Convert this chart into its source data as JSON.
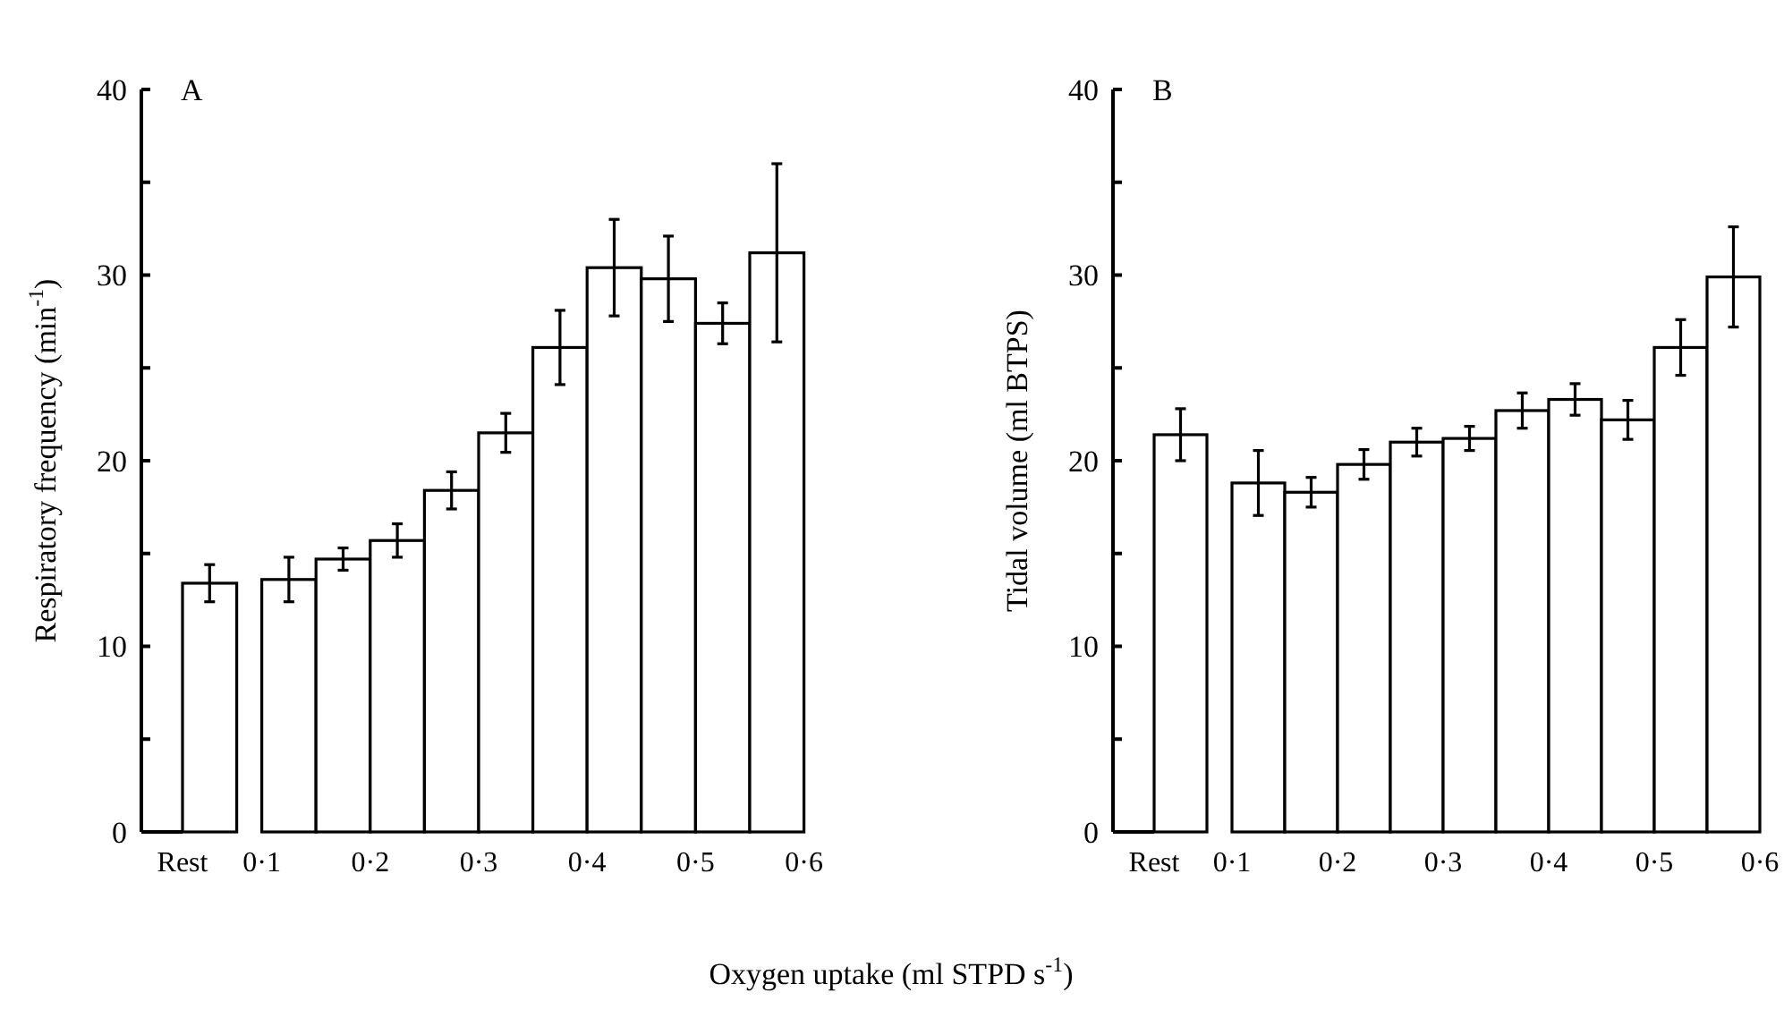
{
  "chart_data": [
    {
      "type": "bar",
      "title": "A",
      "ylabel": "Respiratory frequency (min$^{-1}$)",
      "xlabel": "Oxygen uptake (ml STPD s$^{-1}$)",
      "color": "#ffffff",
      "categories": [
        "Rest",
        "0·1",
        null,
        "0·2",
        null,
        "0·3",
        null,
        "0·4",
        null,
        "0·5",
        null,
        "0·6"
      ],
      "values": [
        13.4,
        13.6,
        14.7,
        15.7,
        18.4,
        21.5,
        26.1,
        30.4,
        29.8,
        27.4,
        31.2,
        null
      ],
      "errors": [
        1.0,
        1.2,
        0.6,
        0.9,
        1.0,
        1.05,
        2.0,
        2.6,
        2.3,
        1.1,
        4.8,
        null
      ],
      "ylim": [
        0,
        40
      ],
      "yticks": [
        0,
        {
          "value": 5,
          "label": null
        },
        10,
        {
          "value": 15,
          "label": null
        },
        20,
        {
          "value": 25,
          "label": null
        },
        30,
        {
          "value": 35,
          "label": null
        },
        40
      ]
    },
    {
      "type": "bar",
      "title": "B",
      "ylabel": "Tidal volume (ml BTPS)",
      "color": "#ffffff",
      "categories": [
        "Rest",
        "0·1",
        null,
        "0·2",
        null,
        "0·3",
        null,
        "0·4",
        null,
        "0·5",
        null,
        "0·6"
      ],
      "values": [
        21.4,
        18.8,
        18.3,
        19.8,
        21.0,
        21.2,
        22.7,
        23.3,
        22.2,
        26.1,
        29.9,
        null
      ],
      "errors": [
        1.4,
        1.75,
        0.8,
        0.8,
        0.75,
        0.65,
        0.95,
        0.85,
        1.05,
        1.5,
        2.7,
        null
      ],
      "ylim": [
        0,
        40
      ],
      "yticks": [
        0,
        {
          "value": 5,
          "label": null
        },
        10,
        {
          "value": 15,
          "label": null
        },
        20,
        {
          "value": 25,
          "label": null
        },
        30,
        {
          "value": 35,
          "label": null
        },
        40
      ]
    }
  ]
}
